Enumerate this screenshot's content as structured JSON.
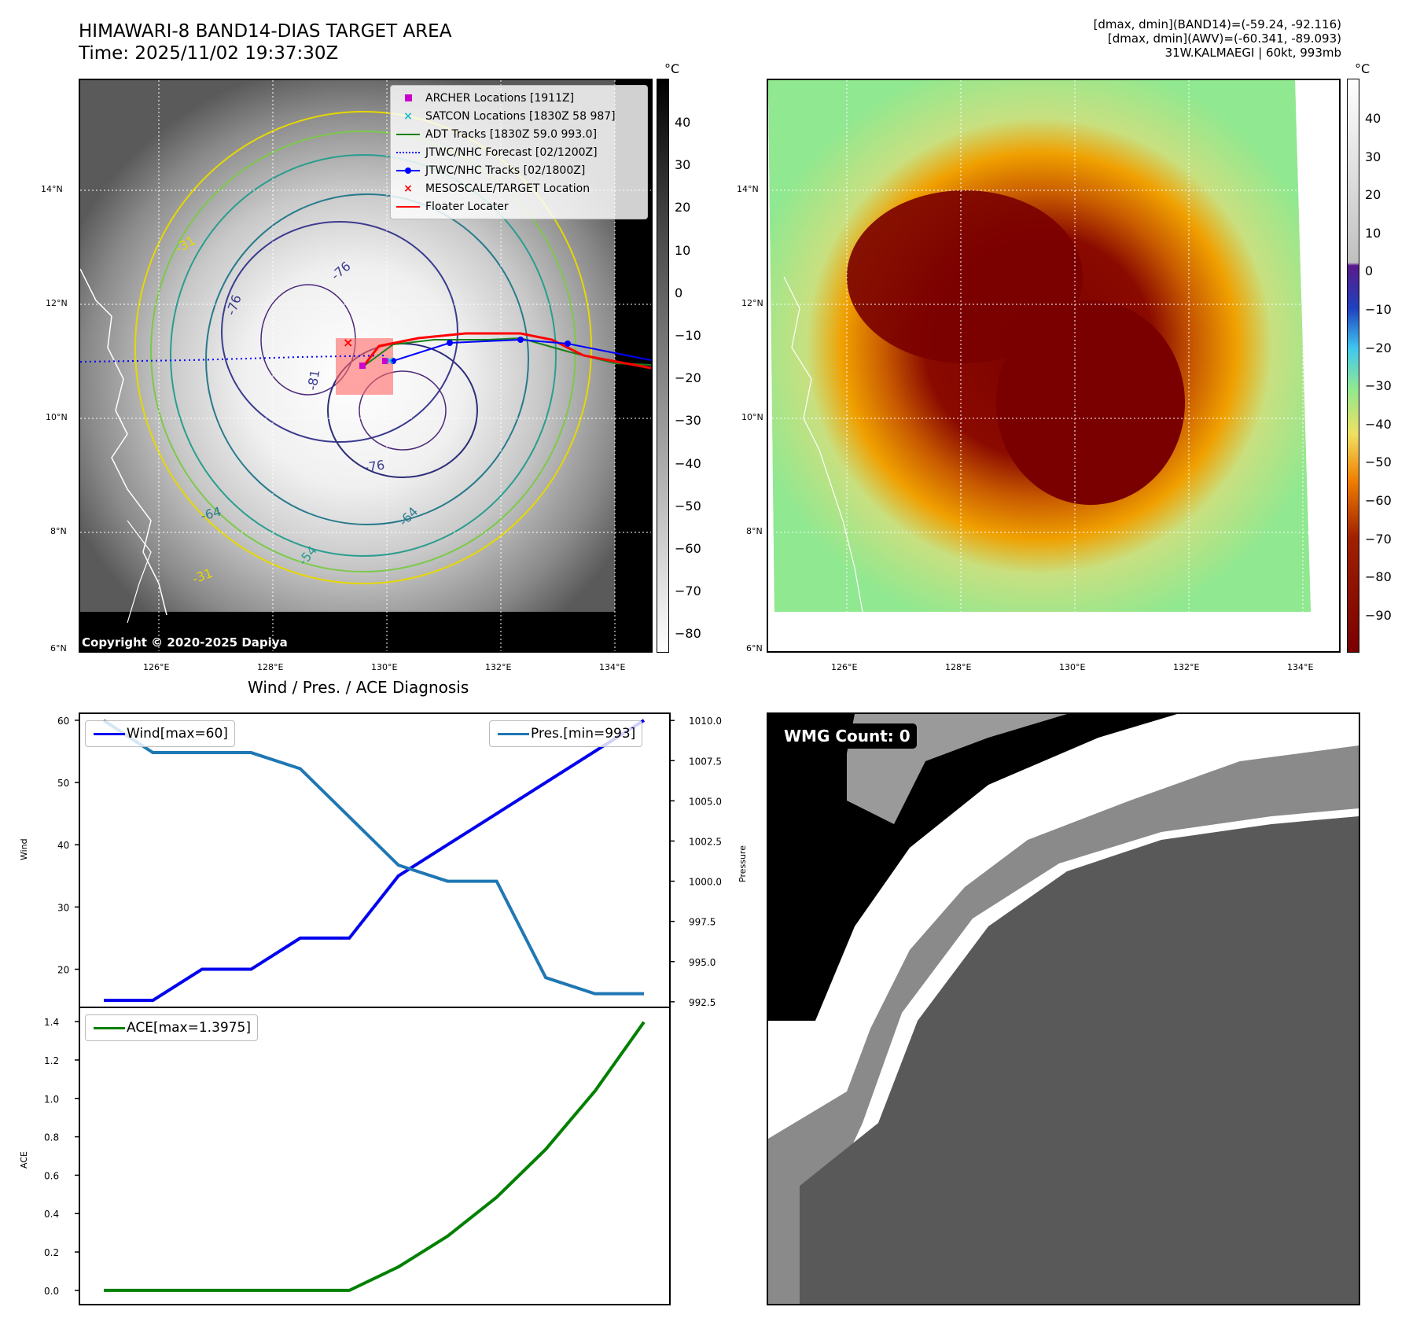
{
  "header": {
    "title_line1": "HIMAWARI-8 BAND14-DIAS TARGET AREA",
    "title_line2": "Time: 2025/11/02 19:37:30Z",
    "info_line1": "[dmax, dmin](BAND14)=(-59.24, -92.116)",
    "info_line2": "[dmax, dmin](AWV)=(-60.341, -89.093)",
    "info_line3": "31W.KALMAEGI | 60kt, 993mb"
  },
  "map_left": {
    "lat_labels": [
      "14°N",
      "12°N",
      "10°N",
      "8°N",
      "6°N"
    ],
    "lon_labels": [
      "126°E",
      "128°E",
      "130°E",
      "132°E",
      "134°E"
    ],
    "copyright": "Copyright © 2020-2025 Dapiya",
    "contour_labels": [
      "-76",
      "-76",
      "-81",
      "-76",
      "-64",
      "-64",
      "-54",
      "-31",
      "-31"
    ],
    "colorbar_unit": "°C",
    "colorbar_ticks": [
      "40",
      "30",
      "20",
      "10",
      "0",
      "−10",
      "−20",
      "−30",
      "−40",
      "−50",
      "−60",
      "−70",
      "−80"
    ],
    "legend": [
      {
        "label": "ARCHER Locations [1911Z]",
        "symbol": "square",
        "color": "#cc00cc"
      },
      {
        "label": "SATCON Locations [1830Z 58 987]",
        "symbol": "x",
        "color": "#17becf"
      },
      {
        "label": "ADT Tracks [1830Z 59.0 993.0]",
        "symbol": "line",
        "color": "#1a7f1a"
      },
      {
        "label": "JTWC/NHC Forecast [02/1200Z]",
        "symbol": "dotted",
        "color": "#0000ff"
      },
      {
        "label": "JTWC/NHC Tracks [02/1800Z]",
        "symbol": "line-dot",
        "color": "#0000ff"
      },
      {
        "label": "MESOSCALE/TARGET Location",
        "symbol": "x",
        "color": "#ff0000"
      },
      {
        "label": "Floater Locater",
        "symbol": "line",
        "color": "#ff0000"
      }
    ]
  },
  "map_right": {
    "lat_labels": [
      "14°N",
      "12°N",
      "10°N",
      "8°N",
      "6°N"
    ],
    "lon_labels": [
      "126°E",
      "128°E",
      "130°E",
      "132°E",
      "134°E"
    ],
    "colorbar_unit": "°C",
    "colorbar_ticks": [
      "40",
      "30",
      "20",
      "10",
      "0",
      "−10",
      "−20",
      "−30",
      "−40",
      "−50",
      "−60",
      "−70",
      "−80",
      "−90"
    ]
  },
  "diag": {
    "title": "Wind / Pres. / ACE Diagnosis",
    "wind_label": "Wind",
    "pres_label": "Pressure",
    "ace_label": "ACE",
    "wind_legend": "Wind[max=60]",
    "pres_legend": "Pres.[min=993]",
    "ace_legend": "ACE[max=1.3975]",
    "wind_ticks": [
      "60",
      "50",
      "40",
      "30",
      "20"
    ],
    "pres_ticks": [
      "1010.0",
      "1007.5",
      "1005.0",
      "1002.5",
      "1000.0",
      "997.5",
      "995.0",
      "992.5"
    ],
    "ace_ticks": [
      "1.4",
      "1.2",
      "1.0",
      "0.8",
      "0.6",
      "0.4",
      "0.2",
      "0.0"
    ]
  },
  "wmg": {
    "label": "WMG Count: 0"
  },
  "colors": {
    "wind": "#0000ee",
    "pressure": "#1f77b4",
    "ace": "#008000"
  },
  "chart_data": [
    {
      "type": "line",
      "title": "Wind / Pres. / ACE Diagnosis",
      "ylabel": "Wind",
      "x": [
        0,
        1,
        2,
        3,
        4,
        5,
        6,
        7,
        8,
        9,
        10,
        11
      ],
      "series": [
        {
          "name": "Wind[max=60]",
          "axis": "left",
          "ylim": [
            14,
            61
          ],
          "values": [
            15,
            15,
            20,
            20,
            25,
            25,
            35,
            40,
            45,
            50,
            55,
            60
          ]
        },
        {
          "name": "Pres.[min=993]",
          "axis": "right",
          "ylim": [
            992.2,
            1010.4
          ],
          "values": [
            1010,
            1008,
            1008,
            1008,
            1007,
            1004,
            1001,
            1000,
            1000,
            994,
            993,
            993
          ]
        }
      ]
    },
    {
      "type": "line",
      "ylabel": "ACE",
      "ylim": [
        -0.07,
        1.47
      ],
      "x": [
        0,
        1,
        2,
        3,
        4,
        5,
        6,
        7,
        8,
        9,
        10,
        11
      ],
      "series": [
        {
          "name": "ACE[max=1.3975]",
          "values": [
            0,
            0,
            0,
            0,
            0,
            0,
            0.1225,
            0.2825,
            0.485,
            0.735,
            1.0375,
            1.3975
          ]
        }
      ]
    }
  ]
}
